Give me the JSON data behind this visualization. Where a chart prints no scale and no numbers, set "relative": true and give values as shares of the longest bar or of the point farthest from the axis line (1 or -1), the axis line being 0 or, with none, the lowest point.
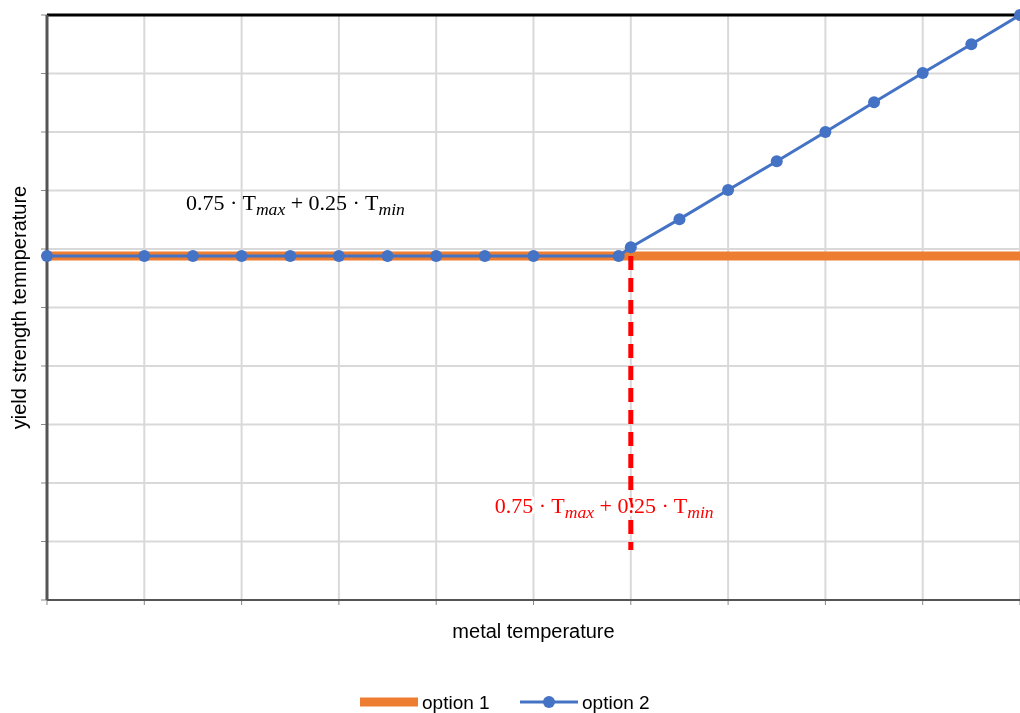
{
  "chart_data": {
    "type": "line",
    "relative": true,
    "xlabel": "metal temperature",
    "ylabel": "yield strength temnperature",
    "categories": [
      null,
      null,
      null,
      null,
      null,
      null,
      null,
      null,
      null,
      null,
      null,
      null,
      null,
      null,
      null,
      null,
      null,
      null,
      null,
      null,
      null,
      null,
      null,
      null,
      null,
      null,
      null,
      null,
      null,
      null,
      null,
      null,
      null,
      null,
      null,
      null,
      null,
      null,
      null,
      null,
      null,
      null,
      null,
      null,
      null,
      null,
      null,
      null,
      null,
      null,
      null,
      null,
      null,
      null,
      null,
      null,
      null,
      null,
      null,
      null,
      null,
      null,
      null,
      null,
      null,
      null,
      null,
      null,
      null,
      null,
      null,
      null,
      null,
      null,
      null,
      null,
      null,
      null,
      null,
      null,
      null
    ],
    "grid": true,
    "legend": "bottom",
    "series": [
      {
        "name": "option 1",
        "color": "#ed7d31",
        "marker": "none",
        "values": [
          0.588,
          0.588,
          0.588,
          0.588,
          0.588,
          0.588,
          0.588,
          0.588,
          0.588,
          0.588,
          0.588,
          0.588,
          0.588,
          0.588,
          0.588,
          0.588,
          0.588,
          0.588,
          0.588,
          0.588,
          0.588,
          0.588,
          0.588,
          0.588,
          0.588,
          0.588,
          0.588,
          0.588,
          0.588,
          0.588,
          0.588,
          0.588,
          0.588,
          0.588,
          0.588,
          0.588,
          0.588,
          0.588,
          0.588,
          0.588,
          0.588,
          0.588,
          0.588,
          0.588,
          0.588,
          0.588,
          0.588,
          0.588,
          0.588,
          0.588,
          0.588,
          0.588,
          0.588,
          0.588,
          0.588,
          0.588,
          0.588,
          0.588,
          0.588,
          0.588,
          0.588,
          0.588,
          0.588,
          0.588,
          0.588,
          0.588,
          0.588,
          0.588,
          0.588,
          0.588,
          0.588,
          0.588,
          0.588,
          0.588,
          0.588,
          0.588,
          0.588,
          0.588,
          0.588,
          0.588,
          0.588
        ]
      },
      {
        "name": "option 2",
        "color": "#4472c4",
        "marker": "circle",
        "values": [
          0.588,
          null,
          null,
          null,
          null,
          null,
          null,
          null,
          0.588,
          null,
          null,
          null,
          0.588,
          null,
          null,
          null,
          0.588,
          null,
          null,
          null,
          0.588,
          null,
          null,
          null,
          0.588,
          null,
          null,
          null,
          0.588,
          null,
          null,
          null,
          0.588,
          null,
          null,
          null,
          0.588,
          null,
          null,
          null,
          0.588,
          null,
          null,
          null,
          null,
          null,
          null,
          0.588,
          0.603,
          null,
          null,
          null,
          0.651,
          null,
          null,
          null,
          0.701,
          null,
          null,
          null,
          0.75,
          null,
          null,
          null,
          0.8,
          null,
          null,
          null,
          0.851,
          null,
          null,
          null,
          0.901,
          null,
          null,
          null,
          0.95,
          null,
          null,
          null,
          1
        ]
      }
    ],
    "annotations": [
      "0.75 · T$_{max}$ + 0.25 · T$_{min}$",
      "0.75 · T$_{max}$ + 0.25 · T$_{min}$"
    ]
  }
}
